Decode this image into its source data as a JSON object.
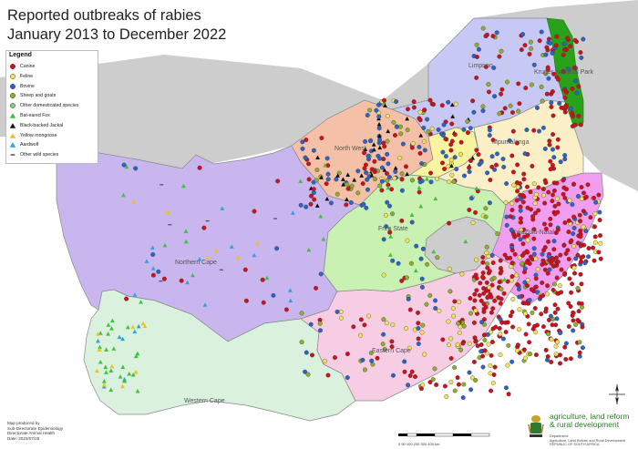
{
  "title_line1": "Reported outbreaks of rabies",
  "title_line2": "January 2013 to December 2022",
  "legend": {
    "heading": "Legend",
    "items": [
      {
        "label": "Canine",
        "shape": "circle",
        "color": "#d0101a"
      },
      {
        "label": "Feline",
        "shape": "circle",
        "color": "#f2e35a"
      },
      {
        "label": "Bovine",
        "shape": "circle",
        "color": "#2b63c8"
      },
      {
        "label": "Sheep and goats",
        "shape": "circle",
        "color": "#8fae2c"
      },
      {
        "label": "Other domesticated species",
        "shape": "circle",
        "color": "#7fd07f"
      },
      {
        "label": "Bat-eared Fox",
        "shape": "triangle",
        "color": "#3cc23c"
      },
      {
        "label": "Black-backed Jackal",
        "shape": "triangle",
        "color": "#111111"
      },
      {
        "label": "Yellow mongoose",
        "shape": "triangle",
        "color": "#f0c020"
      },
      {
        "label": "Aardwolf",
        "shape": "triangle",
        "color": "#2fa0e0"
      },
      {
        "label": "Other wild species",
        "shape": "dash",
        "color": "#333333"
      }
    ]
  },
  "regions": {
    "limpopo": "Limpopo",
    "knp": "Kruger National Park",
    "north_west": "North West",
    "mpumalanga": "Mpumalanga",
    "northern_cape": "Northern Cape",
    "free_state": "Free State",
    "kzn": "KwaZulu-Natal",
    "eastern_cape": "Eastern Cape",
    "western_cape": "Western Cape"
  },
  "credit": [
    "Map produced by",
    "Sub-Directorate Epidemiology",
    "Directorate Animal Health",
    "Date: 2023/07/26"
  ],
  "scale_labels": "0   50  100  200  300  400 km",
  "logo": {
    "line1": "agriculture, land reform",
    "line2": "& rural development",
    "sub1": "Department:",
    "sub2": "Agriculture, Land Reform and Rural Development",
    "sub3": "REPUBLIC OF SOUTH AFRICA"
  },
  "colors": {
    "northern_cape": "#c9b6ef",
    "western_cape": "#d9f1dd",
    "eastern_cape": "#f6cde3",
    "free_state": "#c9f2b2",
    "kzn": "#f19ef0",
    "north_west": "#f4c0a8",
    "limpopo": "#c7c9f4",
    "mpumalanga": "#fbefc7",
    "gauteng": "#f8f4a0",
    "knp": "#2aa11b",
    "neighbors": "#cdcdcd",
    "sea": "#ffffff"
  }
}
